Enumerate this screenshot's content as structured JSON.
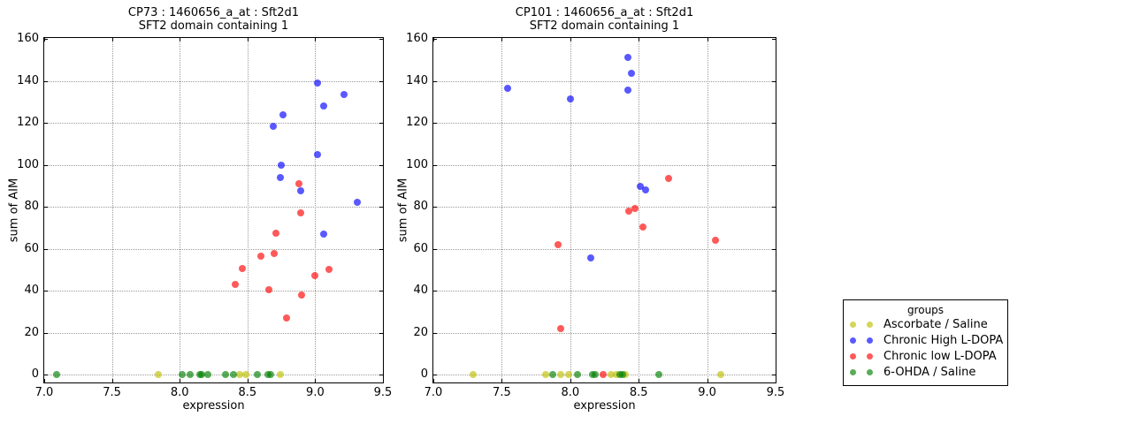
{
  "legend": {
    "title": "groups",
    "entries": [
      {
        "label": "Ascorbate / Saline",
        "color": "#bfbf00"
      },
      {
        "label": "Chronic High L-DOPA",
        "color": "#0000ff"
      },
      {
        "label": "Chronic low L-DOPA",
        "color": "#ff0000"
      },
      {
        "label": "6-OHDA / Saline",
        "color": "#008000"
      }
    ],
    "marker_alpha": 0.65
  },
  "chart_data": [
    {
      "type": "scatter",
      "title": "CP73 : 1460656_a_at : Sft2d1",
      "subtitle": "SFT2 domain containing 1",
      "xlabel": "expression",
      "ylabel": "sum of AIM",
      "xlim": [
        7.0,
        9.5
      ],
      "ylim": [
        0,
        160
      ],
      "xticks": [
        7.0,
        7.5,
        8.0,
        8.5,
        9.0,
        9.5
      ],
      "xtick_labels": [
        "7.0",
        "7.5",
        "8.0",
        "8.5",
        "9.0",
        "9.5"
      ],
      "yticks": [
        0,
        20,
        40,
        60,
        80,
        100,
        120,
        140,
        160
      ],
      "ytick_labels": [
        "0",
        "20",
        "40",
        "60",
        "80",
        "100",
        "120",
        "140",
        "160"
      ],
      "grid": true,
      "series": [
        {
          "name": "Ascorbate / Saline",
          "color": "#bfbf00",
          "points": [
            [
              7.84,
              0
            ],
            [
              8.44,
              0
            ],
            [
              8.49,
              0
            ],
            [
              8.74,
              0
            ]
          ]
        },
        {
          "name": "Chronic High L-DOPA",
          "color": "#0000ff",
          "points": [
            [
              9.02,
              139
            ],
            [
              9.21,
              133.5
            ],
            [
              9.06,
              128
            ],
            [
              8.76,
              124
            ],
            [
              8.69,
              118.5
            ],
            [
              9.02,
              105
            ],
            [
              8.75,
              100
            ],
            [
              8.74,
              94
            ],
            [
              8.89,
              87.5
            ],
            [
              9.31,
              82
            ],
            [
              9.06,
              67
            ]
          ]
        },
        {
          "name": "Chronic low L-DOPA",
          "color": "#ff0000",
          "points": [
            [
              8.88,
              91
            ],
            [
              8.89,
              77
            ],
            [
              8.71,
              67.5
            ],
            [
              8.7,
              57.5
            ],
            [
              8.6,
              56.5
            ],
            [
              8.46,
              50.5
            ],
            [
              9.1,
              50
            ],
            [
              9.0,
              47
            ],
            [
              8.41,
              43
            ],
            [
              8.66,
              40.5
            ],
            [
              8.9,
              38
            ],
            [
              8.79,
              27
            ]
          ]
        },
        {
          "name": "6-OHDA / Saline",
          "color": "#008000",
          "points": [
            [
              7.09,
              0
            ],
            [
              8.02,
              0
            ],
            [
              8.08,
              0
            ],
            [
              8.15,
              0
            ],
            [
              8.16,
              0
            ],
            [
              8.21,
              0
            ],
            [
              8.34,
              0
            ],
            [
              8.4,
              0
            ],
            [
              8.57,
              0
            ],
            [
              8.65,
              0
            ],
            [
              8.67,
              0
            ]
          ]
        }
      ]
    },
    {
      "type": "scatter",
      "title": "CP101 : 1460656_a_at : Sft2d1",
      "subtitle": "SFT2 domain containing 1",
      "xlabel": "expression",
      "ylabel": "sum of AIM",
      "xlim": [
        7.0,
        9.5
      ],
      "ylim": [
        0,
        160
      ],
      "xticks": [
        7.0,
        7.5,
        8.0,
        8.5,
        9.0,
        9.5
      ],
      "xtick_labels": [
        "7.0",
        "7.5",
        "8.0",
        "8.5",
        "9.0",
        "9.5"
      ],
      "yticks": [
        0,
        20,
        40,
        60,
        80,
        100,
        120,
        140,
        160
      ],
      "ytick_labels": [
        "0",
        "20",
        "40",
        "60",
        "80",
        "100",
        "120",
        "140",
        "160"
      ],
      "grid": true,
      "series": [
        {
          "name": "Ascorbate / Saline",
          "color": "#bfbf00",
          "points": [
            [
              7.29,
              0
            ],
            [
              7.82,
              0
            ],
            [
              7.93,
              0
            ],
            [
              7.99,
              0
            ],
            [
              8.3,
              0
            ],
            [
              8.34,
              0
            ],
            [
              8.4,
              0
            ],
            [
              9.1,
              0
            ]
          ]
        },
        {
          "name": "Chronic High L-DOPA",
          "color": "#0000ff",
          "points": [
            [
              8.42,
              151
            ],
            [
              8.45,
              143.5
            ],
            [
              7.54,
              136.5
            ],
            [
              8.42,
              135.5
            ],
            [
              8.0,
              131.5
            ],
            [
              8.51,
              89.5
            ],
            [
              8.55,
              88
            ],
            [
              8.15,
              55.5
            ]
          ]
        },
        {
          "name": "Chronic low L-DOPA",
          "color": "#ff0000",
          "points": [
            [
              8.72,
              93.5
            ],
            [
              8.47,
              79
            ],
            [
              8.43,
              78
            ],
            [
              8.53,
              70.5
            ],
            [
              9.06,
              64
            ],
            [
              7.91,
              62
            ],
            [
              7.93,
              22
            ],
            [
              8.24,
              0
            ]
          ]
        },
        {
          "name": "6-OHDA / Saline",
          "color": "#008000",
          "points": [
            [
              7.87,
              0
            ],
            [
              8.05,
              0
            ],
            [
              8.16,
              0
            ],
            [
              8.18,
              0
            ],
            [
              8.36,
              0
            ],
            [
              8.38,
              0
            ],
            [
              8.65,
              0
            ]
          ]
        }
      ]
    }
  ]
}
